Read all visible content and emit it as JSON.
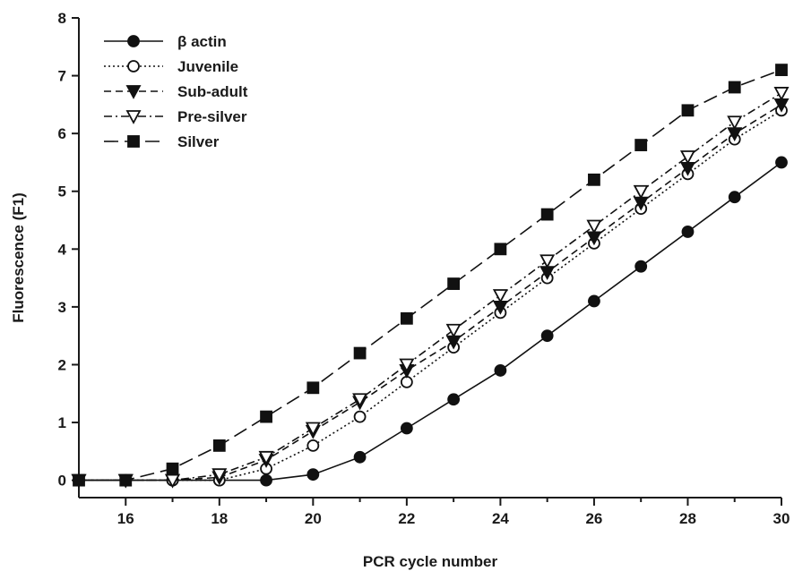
{
  "chart_data": {
    "type": "line",
    "xlabel": "PCR cycle number",
    "ylabel": "Fluorescence (F1)",
    "xlim": [
      15,
      30
    ],
    "ylim": [
      -0.3,
      8
    ],
    "xticks": [
      16,
      18,
      20,
      22,
      24,
      26,
      28,
      30
    ],
    "yticks": [
      0,
      1,
      2,
      3,
      4,
      5,
      6,
      7,
      8
    ],
    "x": [
      15,
      16,
      17,
      18,
      19,
      20,
      21,
      22,
      23,
      24,
      25,
      26,
      27,
      28,
      29,
      30
    ],
    "grid": false,
    "legend_position": "top-left",
    "series": [
      {
        "name": "β actin",
        "marker": "filled-circle",
        "line_style": "solid",
        "values": [
          0,
          0,
          0,
          0,
          0,
          0.1,
          0.4,
          0.9,
          1.4,
          1.9,
          2.5,
          3.1,
          3.7,
          4.3,
          4.9,
          5.5
        ]
      },
      {
        "name": "Juvenile",
        "marker": "open-circle",
        "line_style": "dotted",
        "values": [
          0,
          0,
          0,
          0,
          0.2,
          0.6,
          1.1,
          1.7,
          2.3,
          2.9,
          3.5,
          4.1,
          4.7,
          5.3,
          5.9,
          6.4
        ]
      },
      {
        "name": "Sub-adult",
        "marker": "filled-triangle-down",
        "line_style": "dashed",
        "values": [
          0,
          0,
          0,
          0.05,
          0.35,
          0.85,
          1.35,
          1.9,
          2.4,
          3.0,
          3.6,
          4.2,
          4.8,
          5.4,
          6.0,
          6.5
        ]
      },
      {
        "name": "Pre-silver",
        "marker": "open-triangle-down",
        "line_style": "dash-dot",
        "values": [
          0,
          0,
          0,
          0.1,
          0.4,
          0.9,
          1.4,
          2.0,
          2.6,
          3.2,
          3.8,
          4.4,
          5.0,
          5.6,
          6.2,
          6.7
        ]
      },
      {
        "name": "Silver",
        "marker": "filled-square",
        "line_style": "long-dash",
        "values": [
          0,
          0,
          0.2,
          0.6,
          1.1,
          1.6,
          2.2,
          2.8,
          3.4,
          4.0,
          4.6,
          5.2,
          5.8,
          6.4,
          6.8,
          7.1
        ]
      }
    ]
  }
}
